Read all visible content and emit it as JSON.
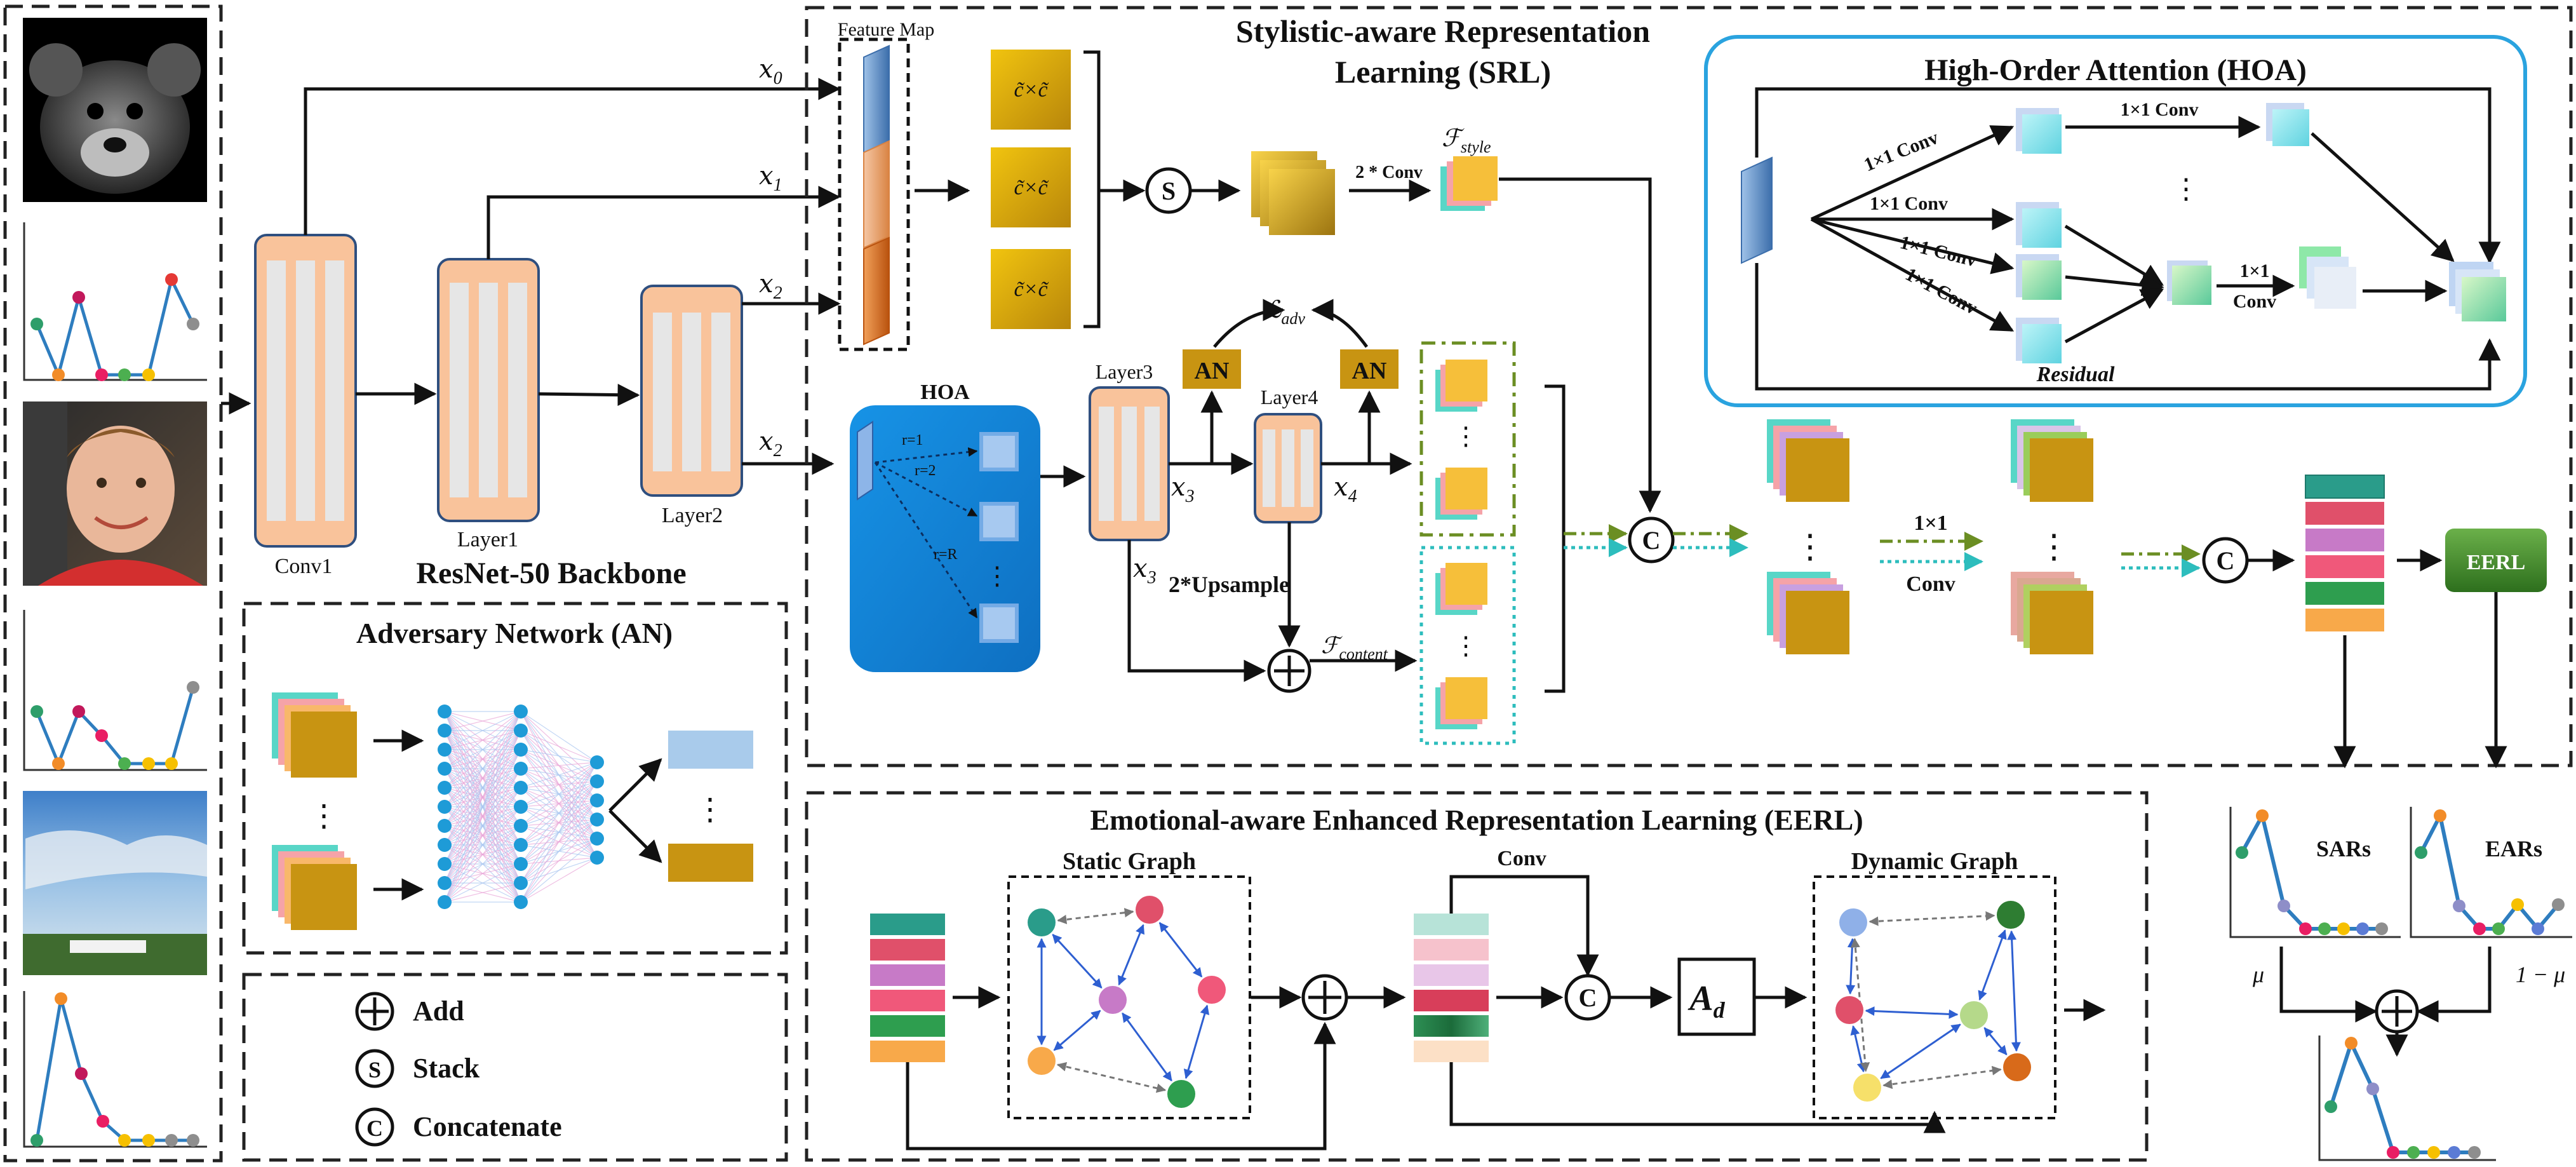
{
  "colors": {
    "orange_block": "#F9C39B",
    "orange_border": "#2F4F7F",
    "hoa_blue": "#1A84D8",
    "hoa_frame": "#2AA3DF",
    "an_gold": "#C89412",
    "eerl_green": "#3E8E2E",
    "feature_gold": "#D9A400",
    "teal_dots": "#2DBDBD",
    "olive_dash": "#6B8E23"
  },
  "input_icons": [
    "monkey-plush-image",
    "emotion-distribution-chart",
    "child-photo",
    "emotion-distribution-chart",
    "sky-landscape-photo",
    "emotion-distribution-chart"
  ],
  "backbone": {
    "conv1": "Conv1",
    "layer1": "Layer1",
    "layer2": "Layer2",
    "title": "ResNet-50 Backbone"
  },
  "srl": {
    "title_line1": "Stylistic-aware Representation",
    "title_line2": "Learning (SRL)",
    "feature_map": "Feature Map",
    "gram": "c̃×c̃",
    "stack_symbol": "S",
    "two_conv": "2 * Conv",
    "f_style_main": "ℱ",
    "f_style_sub": "style",
    "x0": "𝑥",
    "x0_sub": "0",
    "x1": "𝑥",
    "x1_sub": "1",
    "x2": "𝑥",
    "x2_sub": "2",
    "x3": "𝑥",
    "x3_sub": "3",
    "x4": "𝑥",
    "x4_sub": "4",
    "layer3": "Layer3",
    "layer4": "Layer4",
    "an": "AN",
    "l_adv_main": "ℒ",
    "l_adv_sub": "adv",
    "upsample": "2*Upsample",
    "f_content_main": "ℱ",
    "f_content_sub": "content",
    "hoa_label": "HOA",
    "r1": "r=1",
    "r2": "r=2",
    "rR": "r=R",
    "concat_symbol": "C"
  },
  "hoa": {
    "title": "High-Order Attention (HOA)",
    "conv_a": "1×1 Conv",
    "conv_b": "1×1 Conv",
    "conv_c": "1×1 Conv",
    "conv_d": "1×1 Conv",
    "conv_e": "1×1 Conv",
    "conv_f_line1": "1×1",
    "conv_f_line2": "Conv",
    "residual": "Residual",
    "dots": "⋮"
  },
  "fusion": {
    "conv_line1": "1×1",
    "conv_line2": "Conv",
    "eerl_button": "EERL"
  },
  "an_panel": {
    "title": "Adversary Network (AN)"
  },
  "legend": {
    "add_symbol": "+",
    "add": "Add",
    "stack_symbol": "S",
    "stack": "Stack",
    "concat_symbol": "C",
    "concat": "Concatenate"
  },
  "eerl": {
    "title": "Emotional-aware Enhanced Representation Learning (EERL)",
    "static_graph": "Static Graph",
    "dynamic_graph": "Dynamic Graph",
    "conv": "Conv",
    "ad_main": "A",
    "ad_sub": "d"
  },
  "output": {
    "sars": "SARs",
    "ears": "EARs",
    "mu": "μ",
    "one_minus_mu": "1 − μ"
  }
}
